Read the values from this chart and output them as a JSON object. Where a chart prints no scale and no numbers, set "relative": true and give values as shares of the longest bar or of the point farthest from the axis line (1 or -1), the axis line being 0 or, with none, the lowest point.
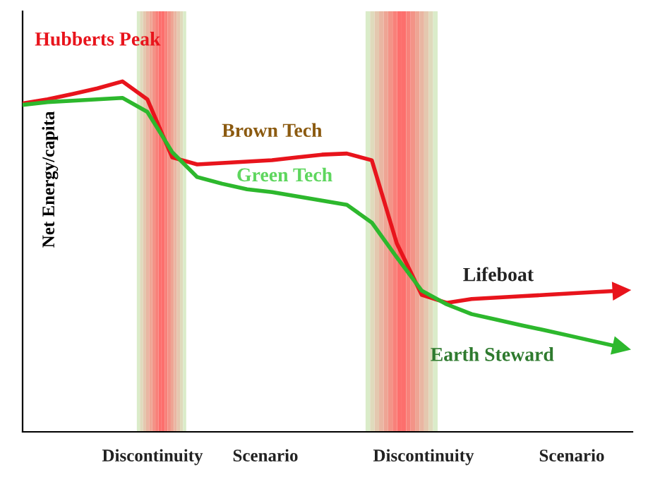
{
  "chart_data": {
    "type": "line",
    "relative": true,
    "ylabel": "Net Energy/capita",
    "categories": [
      null,
      null,
      null,
      null,
      null,
      null,
      null,
      null,
      null,
      null,
      null,
      null,
      null,
      null,
      null,
      null,
      null,
      null,
      null,
      null,
      null,
      null,
      null,
      null,
      null
    ],
    "series": [
      {
        "name": "Brown Tech",
        "color": "#e8141c",
        "values": [
          0.937,
          0.949,
          0.964,
          0.98,
          1.0,
          0.949,
          0.783,
          0.763,
          0.767,
          0.771,
          0.775,
          0.783,
          0.791,
          0.794,
          0.775,
          0.538,
          0.391,
          0.368,
          0.379,
          0.383,
          0.387,
          0.391,
          0.395,
          0.399,
          0.403
        ]
      },
      {
        "name": "Green Tech",
        "color": "#2db82d",
        "values": [
          0.933,
          0.941,
          0.945,
          0.949,
          0.953,
          0.913,
          0.798,
          0.727,
          0.708,
          0.692,
          0.684,
          0.672,
          0.66,
          0.648,
          0.597,
          0.498,
          0.403,
          0.364,
          0.336,
          0.32,
          0.304,
          0.289,
          0.273,
          0.257,
          0.241
        ]
      }
    ],
    "annotations": [
      "Hubberts Peak",
      "Lifeboat",
      "Earth Steward",
      "Discontinuity",
      "Scenario",
      "Discontinuity",
      "Scenario"
    ],
    "grid": false,
    "legend": false,
    "line_style": "solid",
    "marker": "none"
  }
}
